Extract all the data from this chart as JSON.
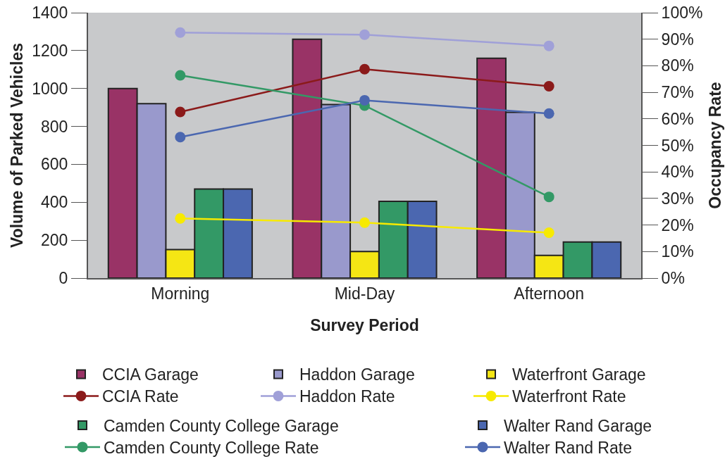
{
  "chart_data": {
    "type": "bar",
    "xlabel": "Survey Period",
    "ylabel": "Volume of Parked Vehicles",
    "y2label": "Occupancy Rate",
    "categories": [
      "Morning",
      "Mid-Day",
      "Afternoon"
    ],
    "ylim": [
      0,
      1400
    ],
    "yticks": [
      0,
      200,
      400,
      600,
      800,
      1000,
      1200,
      1400
    ],
    "y2lim": [
      0,
      100
    ],
    "y2ticks": [
      {
        "value": 0,
        "label": "0%"
      },
      {
        "value": 10,
        "label": "10%"
      },
      {
        "value": 20,
        "label": "20%"
      },
      {
        "value": 30,
        "label": "30%"
      },
      {
        "value": 40,
        "label": "40%"
      },
      {
        "value": 50,
        "label": "50%"
      },
      {
        "value": 60,
        "label": "60%"
      },
      {
        "value": 70,
        "label": "70%"
      },
      {
        "value": 80,
        "label": "80%"
      },
      {
        "value": 90,
        "label": "90%"
      },
      {
        "value": 100,
        "label": "100%"
      }
    ],
    "grid": false,
    "legend": "bottom",
    "marker": "circle",
    "line_style": "solid",
    "series": [
      {
        "name": "CCIA Garage",
        "color": "#993366",
        "values": [
          1000,
          1260,
          1160
        ]
      },
      {
        "name": "Haddon Garage",
        "color": "#9999cc",
        "values": [
          920,
          915,
          875
        ]
      },
      {
        "name": "Waterfront Garage",
        "color": "#f5e614",
        "values": [
          150,
          140,
          120
        ]
      },
      {
        "name": "CCIA Rate",
        "type": "line",
        "axis": "y2",
        "color": "#8b1a1a",
        "values": [
          62.6,
          78.7,
          72.3
        ]
      },
      {
        "name": "Haddon Rate",
        "type": "line",
        "axis": "y2",
        "color": "#a0a0d8",
        "values": [
          92.5,
          91.7,
          87.5
        ]
      },
      {
        "name": "Waterfront Rate",
        "type": "line",
        "axis": "y2",
        "color": "#f7ea00",
        "values": [
          22.5,
          20.9,
          17.1
        ]
      },
      {
        "name": "Camden County College Garage",
        "color": "#339966",
        "values": [
          470,
          405,
          190
        ]
      },
      {
        "name": "Walter Rand Garage",
        "color": "#4b67b0",
        "values": [
          470,
          405,
          190
        ]
      },
      {
        "name": "Camden County College Rate",
        "type": "line",
        "axis": "y2",
        "color": "#339966",
        "values": [
          76.4,
          65.0,
          30.6
        ]
      },
      {
        "name": "Walter Rand Rate",
        "type": "line",
        "axis": "y2",
        "color": "#4b67b0",
        "values": [
          53.1,
          67.0,
          62.0
        ]
      }
    ]
  }
}
